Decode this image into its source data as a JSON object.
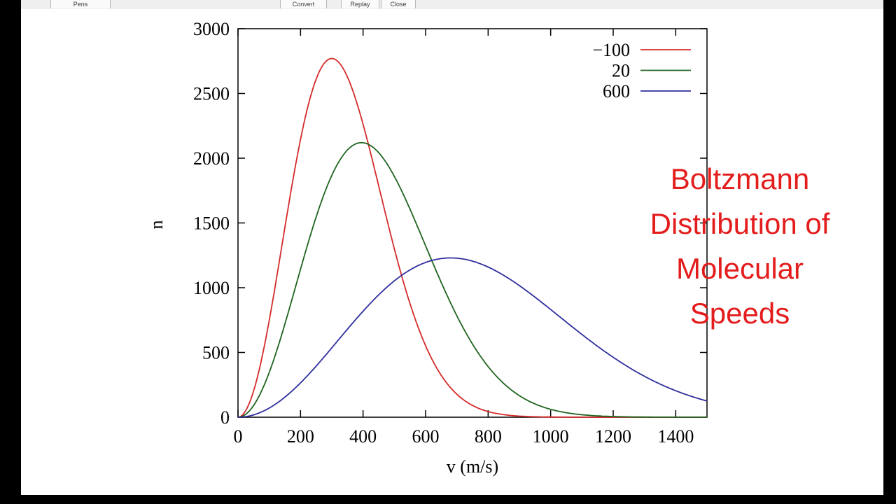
{
  "toolbar": {
    "items": [
      {
        "label": "Pens"
      },
      {
        "label": "Convert"
      },
      {
        "label": "Replay"
      },
      {
        "label": "Close"
      }
    ]
  },
  "annotation": {
    "lines": [
      "Boltzmann",
      "Distribution of",
      "Molecular",
      "Speeds"
    ],
    "color": "#e31c1c"
  },
  "chart_data": {
    "type": "line",
    "title": "",
    "xlabel": "v (m/s)",
    "ylabel": "n",
    "xlim": [
      0,
      1500
    ],
    "ylim": [
      0,
      3000
    ],
    "xticks": [
      0,
      200,
      400,
      600,
      800,
      1000,
      1200,
      1400
    ],
    "yticks": [
      0,
      500,
      1000,
      1500,
      2000,
      2500,
      3000
    ],
    "grid": false,
    "legend_position": "top-right-inside",
    "curve_model": "n(v) = peak_n * (v/peak_v)^2 * exp(1 - (v/peak_v)^2)",
    "x_samples": [
      0,
      100,
      200,
      300,
      400,
      500,
      600,
      700,
      800,
      900,
      1000,
      1100,
      1200,
      1300,
      1400,
      1500
    ],
    "series": [
      {
        "name": "−100",
        "color": "#d42a2a",
        "peak_v": 300,
        "peak_n": 2770,
        "values": [
          0,
          749,
          2146,
          2770,
          2262,
          1300,
          552,
          177,
          44,
          8,
          2,
          0,
          0,
          0,
          0,
          0
        ]
      },
      {
        "name": "20",
        "color": "#1f641f",
        "peak_v": 395,
        "peak_n": 2120,
        "values": [
          0,
          346,
          1143,
          1867,
          2119,
          1860,
          1323,
          783,
          391,
          167,
          61,
          19,
          5,
          1,
          0,
          0
        ]
      },
      {
        "name": "600",
        "color": "#2e2e9e",
        "peak_v": 680,
        "peak_n": 1230,
        "values": [
          0,
          71,
          265,
          536,
          818,
          1053,
          1195,
          1228,
          1160,
          1016,
          832,
          639,
          462,
          316,
          204,
          125
        ]
      }
    ]
  }
}
